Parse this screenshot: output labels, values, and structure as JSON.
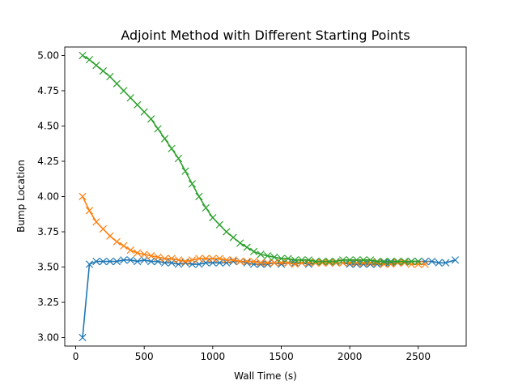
{
  "chart_data": {
    "type": "line",
    "title": "Adjoint Method with Different Starting Points",
    "xlabel": "Wall Time (s)",
    "ylabel": "Bump Location",
    "xlim": [
      -80,
      2850
    ],
    "ylim": [
      2.94,
      5.06
    ],
    "xticks": [
      0,
      500,
      1000,
      1500,
      2000,
      2500
    ],
    "yticks": [
      3.0,
      3.25,
      3.5,
      3.75,
      4.0,
      4.25,
      4.5,
      4.75,
      5.0
    ],
    "xtick_labels": [
      "0",
      "500",
      "1000",
      "1500",
      "2000",
      "2500"
    ],
    "ytick_labels": [
      "3.00",
      "3.25",
      "3.50",
      "3.75",
      "4.00",
      "4.25",
      "4.50",
      "4.75",
      "5.00"
    ],
    "grid": false,
    "marker": "x",
    "series": [
      {
        "color": "#1f77b4",
        "points": [
          [
            50,
            3.0
          ],
          [
            100,
            3.52
          ],
          [
            150,
            3.54
          ],
          [
            200,
            3.54
          ],
          [
            250,
            3.54
          ],
          [
            300,
            3.54
          ],
          [
            350,
            3.55
          ],
          [
            400,
            3.55
          ],
          [
            450,
            3.54
          ],
          [
            500,
            3.55
          ],
          [
            550,
            3.54
          ],
          [
            600,
            3.54
          ],
          [
            650,
            3.53
          ],
          [
            700,
            3.53
          ],
          [
            750,
            3.52
          ],
          [
            800,
            3.53
          ],
          [
            850,
            3.52
          ],
          [
            900,
            3.52
          ],
          [
            950,
            3.53
          ],
          [
            1000,
            3.53
          ],
          [
            1050,
            3.53
          ],
          [
            1100,
            3.53
          ],
          [
            1150,
            3.54
          ],
          [
            1200,
            3.54
          ],
          [
            1250,
            3.53
          ],
          [
            1300,
            3.52
          ],
          [
            1350,
            3.52
          ],
          [
            1400,
            3.52
          ],
          [
            1450,
            3.53
          ],
          [
            1500,
            3.52
          ],
          [
            1550,
            3.53
          ],
          [
            1600,
            3.53
          ],
          [
            1650,
            3.53
          ],
          [
            1700,
            3.52
          ],
          [
            1750,
            3.53
          ],
          [
            1800,
            3.53
          ],
          [
            1850,
            3.53
          ],
          [
            1900,
            3.53
          ],
          [
            1950,
            3.53
          ],
          [
            2000,
            3.52
          ],
          [
            2050,
            3.52
          ],
          [
            2100,
            3.52
          ],
          [
            2150,
            3.52
          ],
          [
            2200,
            3.52
          ],
          [
            2250,
            3.53
          ],
          [
            2300,
            3.53
          ],
          [
            2350,
            3.53
          ],
          [
            2400,
            3.53
          ],
          [
            2450,
            3.54
          ],
          [
            2500,
            3.54
          ],
          [
            2550,
            3.54
          ],
          [
            2600,
            3.54
          ],
          [
            2650,
            3.53
          ],
          [
            2700,
            3.53
          ],
          [
            2770,
            3.55
          ]
        ]
      },
      {
        "color": "#ff7f0e",
        "points": [
          [
            50,
            4.0
          ],
          [
            100,
            3.9
          ],
          [
            150,
            3.82
          ],
          [
            200,
            3.77
          ],
          [
            250,
            3.72
          ],
          [
            300,
            3.68
          ],
          [
            350,
            3.65
          ],
          [
            400,
            3.62
          ],
          [
            450,
            3.6
          ],
          [
            500,
            3.59
          ],
          [
            550,
            3.58
          ],
          [
            600,
            3.57
          ],
          [
            650,
            3.56
          ],
          [
            700,
            3.56
          ],
          [
            750,
            3.55
          ],
          [
            800,
            3.54
          ],
          [
            850,
            3.55
          ],
          [
            900,
            3.56
          ],
          [
            950,
            3.56
          ],
          [
            1000,
            3.56
          ],
          [
            1050,
            3.56
          ],
          [
            1100,
            3.55
          ],
          [
            1150,
            3.55
          ],
          [
            1200,
            3.54
          ],
          [
            1250,
            3.54
          ],
          [
            1300,
            3.54
          ],
          [
            1350,
            3.53
          ],
          [
            1400,
            3.53
          ],
          [
            1450,
            3.53
          ],
          [
            1500,
            3.53
          ],
          [
            1550,
            3.53
          ],
          [
            1600,
            3.52
          ],
          [
            1650,
            3.53
          ],
          [
            1700,
            3.53
          ],
          [
            1750,
            3.53
          ],
          [
            1800,
            3.53
          ],
          [
            1850,
            3.53
          ],
          [
            1900,
            3.53
          ],
          [
            1950,
            3.53
          ],
          [
            2000,
            3.53
          ],
          [
            2050,
            3.53
          ],
          [
            2100,
            3.53
          ],
          [
            2150,
            3.53
          ],
          [
            2200,
            3.53
          ],
          [
            2250,
            3.52
          ],
          [
            2300,
            3.52
          ],
          [
            2350,
            3.53
          ],
          [
            2400,
            3.53
          ],
          [
            2450,
            3.52
          ],
          [
            2500,
            3.52
          ],
          [
            2550,
            3.52
          ]
        ]
      },
      {
        "color": "#2ca02c",
        "points": [
          [
            50,
            5.0
          ],
          [
            100,
            4.97
          ],
          [
            150,
            4.93
          ],
          [
            200,
            4.89
          ],
          [
            250,
            4.85
          ],
          [
            300,
            4.8
          ],
          [
            350,
            4.75
          ],
          [
            400,
            4.7
          ],
          [
            450,
            4.65
          ],
          [
            500,
            4.6
          ],
          [
            550,
            4.55
          ],
          [
            600,
            4.48
          ],
          [
            650,
            4.41
          ],
          [
            700,
            4.34
          ],
          [
            750,
            4.27
          ],
          [
            800,
            4.18
          ],
          [
            850,
            4.09
          ],
          [
            900,
            4.0
          ],
          [
            950,
            3.92
          ],
          [
            1000,
            3.85
          ],
          [
            1050,
            3.8
          ],
          [
            1100,
            3.75
          ],
          [
            1150,
            3.71
          ],
          [
            1200,
            3.67
          ],
          [
            1250,
            3.64
          ],
          [
            1300,
            3.61
          ],
          [
            1350,
            3.59
          ],
          [
            1400,
            3.58
          ],
          [
            1450,
            3.57
          ],
          [
            1500,
            3.56
          ],
          [
            1550,
            3.56
          ],
          [
            1600,
            3.55
          ],
          [
            1650,
            3.55
          ],
          [
            1700,
            3.55
          ],
          [
            1750,
            3.54
          ],
          [
            1800,
            3.54
          ],
          [
            1850,
            3.54
          ],
          [
            1900,
            3.54
          ],
          [
            1950,
            3.55
          ],
          [
            2000,
            3.55
          ],
          [
            2050,
            3.55
          ],
          [
            2100,
            3.55
          ],
          [
            2150,
            3.55
          ],
          [
            2200,
            3.54
          ],
          [
            2250,
            3.54
          ],
          [
            2300,
            3.54
          ],
          [
            2350,
            3.54
          ],
          [
            2400,
            3.54
          ],
          [
            2450,
            3.54
          ],
          [
            2500,
            3.54
          ]
        ]
      }
    ]
  }
}
